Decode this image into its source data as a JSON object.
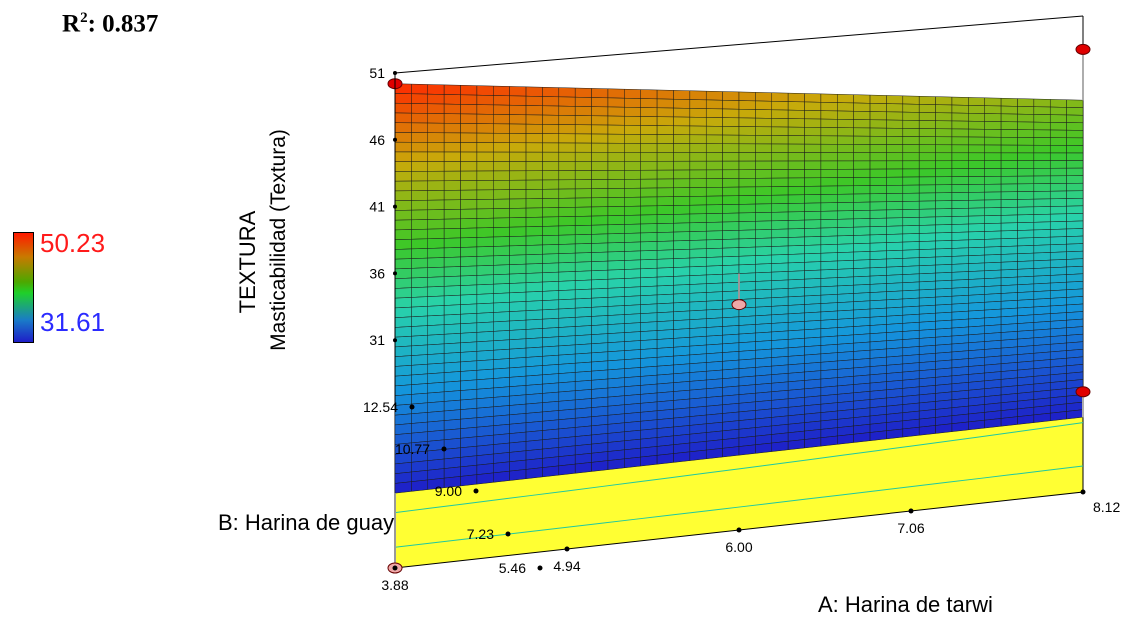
{
  "stat": {
    "label": "R",
    "sup": "2",
    "value": ": 0.837"
  },
  "legend": {
    "max_label": "50.23",
    "min_label": "31.61",
    "max_color": "#ff1a1a",
    "min_color": "#2b2bff"
  },
  "chart_data": {
    "type": "surface3d",
    "z_title": "TEXTURA",
    "z_subtitle": "Masticabilidad (Textura)",
    "x_title": "A: Harina de tarwi",
    "y_title": "B: Harina de guayaba",
    "x_ticks": [
      "3.88",
      "4.94",
      "6.00",
      "7.06",
      "8.12"
    ],
    "y_ticks": [
      "5.46",
      "7.23",
      "9.00",
      "10.77",
      "12.54"
    ],
    "z_ticks": [
      "31",
      "36",
      "41",
      "46",
      "51"
    ],
    "x_range": [
      3.88,
      8.12
    ],
    "y_range": [
      5.46,
      12.54
    ],
    "z_range": [
      26,
      51
    ],
    "surface_corners": [
      {
        "x": 3.88,
        "y": 5.46,
        "z": 31.6
      },
      {
        "x": 8.12,
        "y": 5.46,
        "z": 31.6
      },
      {
        "x": 3.88,
        "y": 12.54,
        "z": 50.2
      },
      {
        "x": 8.12,
        "y": 12.54,
        "z": 44.7
      }
    ],
    "design_points": [
      {
        "x": 3.88,
        "y": 12.54,
        "z": 50.2
      },
      {
        "x": 8.12,
        "y": 12.54,
        "z": 48.5
      },
      {
        "x": 6.0,
        "y": 9.0,
        "z": 37.2
      },
      {
        "x": 8.12,
        "y": 5.46,
        "z": 33.5
      },
      {
        "x": 3.88,
        "y": 5.46,
        "z": 26.0
      }
    ],
    "floor_contour_color": "#ffff33",
    "grid": false
  }
}
